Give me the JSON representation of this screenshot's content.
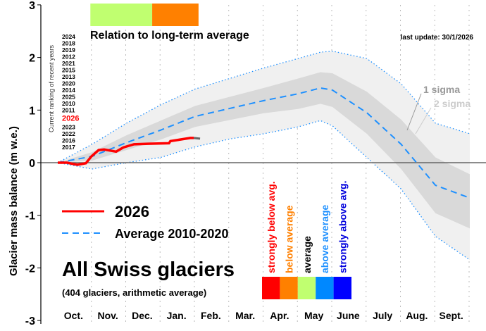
{
  "chart_data": {
    "type": "line",
    "ylabel": "Glacier mass balance (m w.e.)",
    "ylim": [
      -3,
      3
    ],
    "yticks": [
      3,
      2,
      1,
      0,
      -1,
      -2,
      -3
    ],
    "xlim_months": [
      0,
      12
    ],
    "months": [
      "Oct.",
      "Nov.",
      "Dec.",
      "Jan.",
      "Feb.",
      "Mar.",
      "Apr.",
      "May",
      "June",
      "July",
      "Aug.",
      "Sept."
    ],
    "grid": "vertical dotted at month boundaries",
    "last_update": "last update: 30/1/2026",
    "title_box": "All Swiss glaciers",
    "subtitle_box": "(404 glaciers, arithmetic average)",
    "series": [
      {
        "name": "2026",
        "color": "#ff0000",
        "x_months": [
          0,
          0.27,
          0.57,
          0.82,
          0.98,
          1.19,
          1.35,
          1.7,
          1.91,
          2.22,
          2.63,
          3.24,
          3.28,
          3.86,
          3.96
        ],
        "values": [
          0,
          0,
          -0.04,
          -0.01,
          0.12,
          0.24,
          0.25,
          0.21,
          0.29,
          0.35,
          0.36,
          0.37,
          0.41,
          0.47,
          0.47
        ]
      },
      {
        "name": "Average 2010-2020",
        "color": "#1e90ff",
        "x_months": [
          0,
          1,
          2,
          3,
          4,
          5,
          6,
          7,
          7.65,
          8,
          9,
          10,
          11,
          12
        ],
        "values": [
          0,
          0.12,
          0.38,
          0.62,
          0.88,
          1.03,
          1.18,
          1.31,
          1.42,
          1.38,
          0.95,
          0.35,
          -0.43,
          -0.67
        ]
      }
    ],
    "bands": {
      "x_months": [
        0,
        1,
        2,
        3,
        4,
        5,
        6,
        7,
        7.65,
        8,
        9,
        10,
        11,
        12
      ],
      "sigma1_upper": [
        0,
        0.2,
        0.52,
        0.8,
        1.08,
        1.25,
        1.42,
        1.6,
        1.72,
        1.7,
        1.35,
        0.82,
        0.1,
        -0.22
      ],
      "sigma1_lower": [
        0,
        0.04,
        0.24,
        0.44,
        0.68,
        0.81,
        0.94,
        1.02,
        1.12,
        1.06,
        0.55,
        -0.12,
        -0.96,
        -1.25
      ],
      "sigma2_upper": [
        0,
        0.35,
        0.75,
        1.1,
        1.4,
        1.6,
        1.8,
        1.98,
        2.1,
        2.12,
        1.98,
        1.5,
        0.75,
        0.55
      ],
      "sigma2_lower": [
        0,
        -0.12,
        0.0,
        0.1,
        0.3,
        0.45,
        0.55,
        0.68,
        0.8,
        0.7,
        0.1,
        -0.5,
        -1.4,
        -1.85
      ],
      "sigma1_label": "1 sigma",
      "sigma2_label": "2 sigma"
    },
    "relation_bar": {
      "title": "Relation to long-term average",
      "segments": [
        {
          "from_month": 0.95,
          "to_month": 2.75,
          "color": "#c0ff70"
        },
        {
          "from_month": 2.75,
          "to_month": 4.1,
          "color": "#ff8000"
        }
      ]
    },
    "ranking": {
      "label": "Current ranking of recent years",
      "years": [
        "2024",
        "2018",
        "2019",
        "2012",
        "2021",
        "2015",
        "2013",
        "2020",
        "2014",
        "2025",
        "2010",
        "2011",
        "2026",
        "2023",
        "2022",
        "2016",
        "2017"
      ],
      "highlight": "2026"
    },
    "color_key": [
      {
        "label": "strongly below avg.",
        "color": "#ff0000"
      },
      {
        "label": "below average",
        "color": "#ff8000"
      },
      {
        "label": "average",
        "color": "#c0ff70"
      },
      {
        "label": "above average",
        "color": "#0088ff"
      },
      {
        "label": "strongly above avg.",
        "color": "#0000ff"
      }
    ],
    "color_key_text_colors": [
      "#ff0000",
      "#ff8000",
      "#000000",
      "#1e90ff",
      "#0000dd"
    ]
  }
}
